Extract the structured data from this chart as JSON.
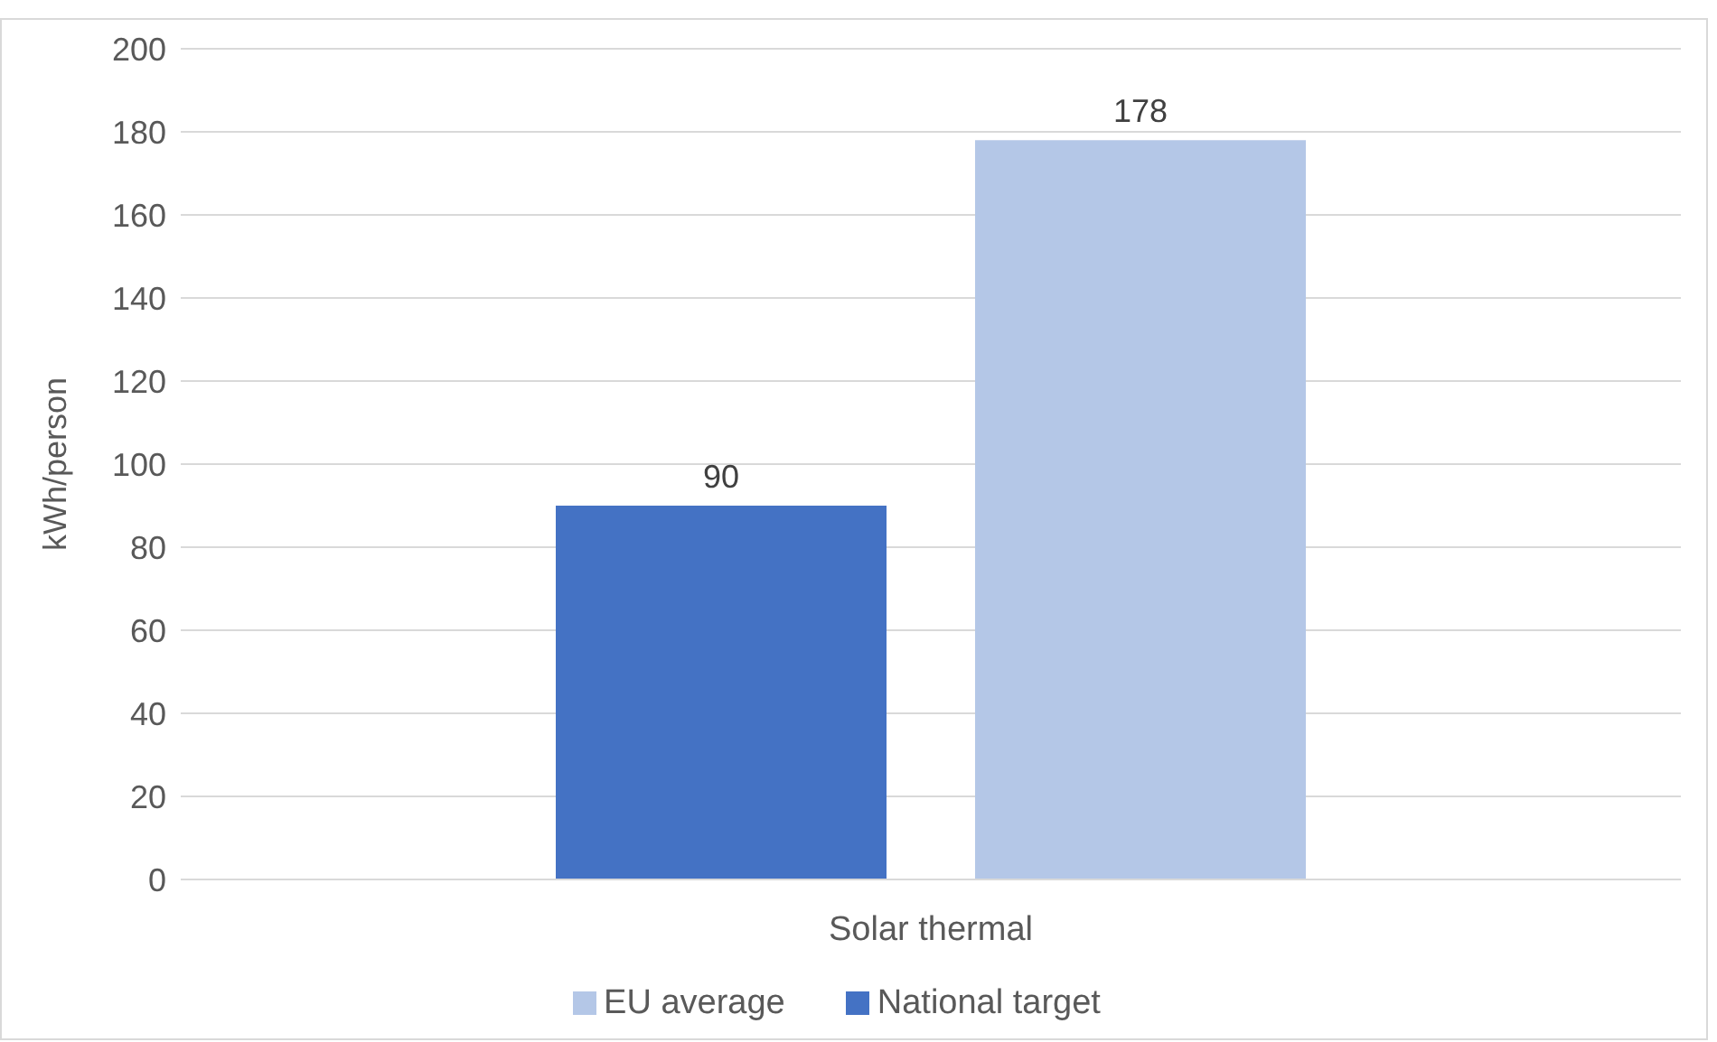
{
  "chart_data": {
    "type": "bar",
    "ylabel": "kWh/person",
    "categories": [
      "Solar thermal"
    ],
    "series": [
      {
        "name": "National target",
        "color": "#4472c4",
        "values": [
          90
        ]
      },
      {
        "name": "EU average",
        "color": "#b4c7e7",
        "values": [
          178
        ]
      }
    ],
    "ylim": [
      0,
      200
    ],
    "yticks": [
      0,
      20,
      40,
      60,
      80,
      100,
      120,
      140,
      160,
      180,
      200
    ],
    "grid": "y",
    "legend": "bottom",
    "data_labels": true
  }
}
